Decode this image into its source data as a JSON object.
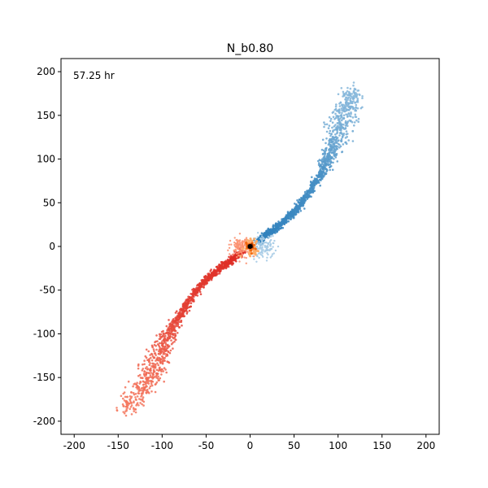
{
  "chart_data": {
    "type": "scatter",
    "title": "N_b0.80",
    "annotation": "57.25 hr",
    "xlabel": "",
    "ylabel": "",
    "xlim": [
      -215,
      215
    ],
    "ylim": [
      -215,
      215
    ],
    "xticks": [
      -200,
      -150,
      -100,
      -50,
      0,
      50,
      100,
      150,
      200
    ],
    "yticks": [
      -200,
      -150,
      -100,
      -50,
      0,
      50,
      100,
      150,
      200
    ],
    "grid": false,
    "legend": "none",
    "series": [
      {
        "color_dense": "#3182bd",
        "color_sparse": "#a6cbe6",
        "stream_path": [
          [
            8,
            5
          ],
          [
            20,
            15
          ],
          [
            35,
            25
          ],
          [
            50,
            40
          ],
          [
            65,
            58
          ],
          [
            80,
            82
          ],
          [
            90,
            105
          ],
          [
            100,
            130
          ],
          [
            110,
            155
          ],
          [
            118,
            180
          ]
        ],
        "stream_density": [
          1.0,
          1.0,
          0.95,
          0.9,
          0.85,
          0.8,
          0.6,
          0.45,
          0.35,
          0.25
        ],
        "stream_halfwidth": [
          3,
          3,
          3,
          3,
          3,
          4,
          8,
          12,
          12,
          8
        ],
        "core_cloud": {
          "center": [
            15,
            0
          ],
          "spread": [
            12,
            12
          ]
        }
      },
      {
        "color_dense": "#de2d26",
        "color_sparse": "#fc9272",
        "stream_path": [
          [
            -8,
            -5
          ],
          [
            -20,
            -15
          ],
          [
            -35,
            -25
          ],
          [
            -50,
            -38
          ],
          [
            -65,
            -55
          ],
          [
            -80,
            -80
          ],
          [
            -95,
            -105
          ],
          [
            -105,
            -130
          ],
          [
            -118,
            -155
          ],
          [
            -145,
            -190
          ]
        ],
        "stream_density": [
          1.0,
          1.0,
          0.95,
          0.9,
          0.85,
          0.8,
          0.6,
          0.45,
          0.35,
          0.25
        ],
        "stream_halfwidth": [
          3,
          3,
          3,
          3,
          3,
          4,
          8,
          12,
          12,
          8
        ],
        "core_cloud": {
          "center": [
            -10,
            0
          ],
          "spread": [
            10,
            10
          ]
        }
      }
    ],
    "center": {
      "position": [
        0,
        0
      ],
      "colors": [
        "#000000",
        "#7f2704",
        "#f16913",
        "#fdae6b"
      ]
    }
  }
}
